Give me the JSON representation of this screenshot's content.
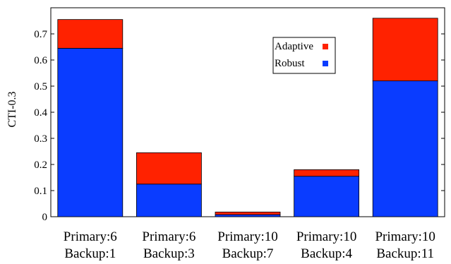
{
  "chart_data": {
    "type": "bar",
    "stacked": true,
    "categories": [
      [
        "Primary:6",
        "Backup:1"
      ],
      [
        "Primary:6",
        "Backup:3"
      ],
      [
        "Primary:10",
        "Backup:7"
      ],
      [
        "Primary:10",
        "Backup:4"
      ],
      [
        "Primary:10",
        "Backup:11"
      ]
    ],
    "series": [
      {
        "name": "Robust",
        "color": "#0a3cff",
        "values": [
          0.645,
          0.125,
          0.008,
          0.155,
          0.52
        ]
      },
      {
        "name": "Adaptive",
        "color": "#ff2200",
        "values": [
          0.11,
          0.12,
          0.01,
          0.025,
          0.24
        ]
      }
    ],
    "title": "",
    "xlabel": "",
    "ylabel": "CTI-0.3",
    "ylim": [
      0,
      0.8
    ],
    "yticks": [
      0,
      0.1,
      0.2,
      0.3,
      0.4,
      0.5,
      0.6,
      0.7
    ],
    "ytick_labels": [
      "0",
      "0.1",
      "0.2",
      "0.3",
      "0.4",
      "0.5",
      "0.6",
      "0.7"
    ],
    "legend": {
      "placement": "top-center-right",
      "entries": [
        "Adaptive",
        "Robust"
      ]
    },
    "grid": false
  }
}
